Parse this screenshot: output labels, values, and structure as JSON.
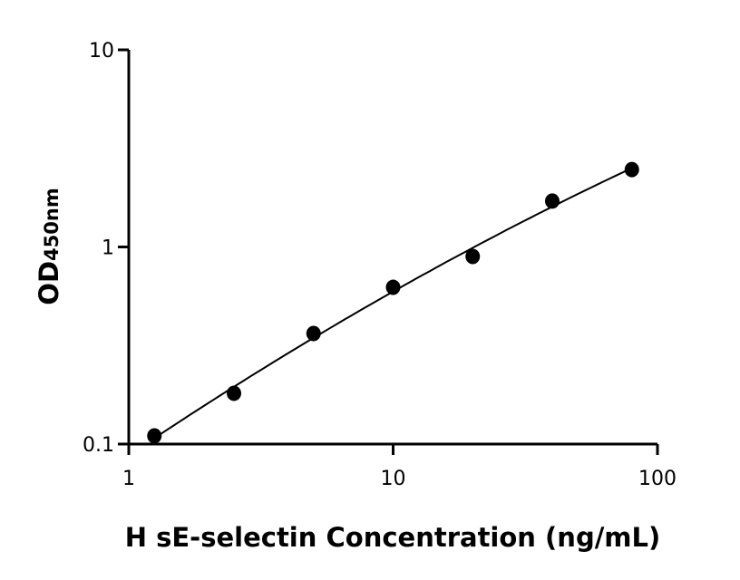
{
  "chart_data": {
    "type": "scatter",
    "title": "",
    "xlabel": "H sE-selectin Concentration (ng/mL)",
    "ylabel_main": "OD",
    "ylabel_sub": "450nm",
    "x_scale": "log",
    "y_scale": "log",
    "xlim": [
      1,
      100
    ],
    "ylim": [
      0.1,
      10
    ],
    "x_ticks": [
      1,
      10,
      100
    ],
    "x_tick_labels": [
      "1",
      "10",
      "100"
    ],
    "y_ticks": [
      0.1,
      1,
      10
    ],
    "y_tick_labels": [
      "0.1",
      "1",
      "10"
    ],
    "grid": false,
    "fit_curve": true,
    "marker_color": "#000000",
    "points": [
      {
        "x": 1.25,
        "y": 0.11
      },
      {
        "x": 2.5,
        "y": 0.181
      },
      {
        "x": 5,
        "y": 0.364
      },
      {
        "x": 10,
        "y": 0.624
      },
      {
        "x": 20,
        "y": 0.895
      },
      {
        "x": 40,
        "y": 1.71
      },
      {
        "x": 80,
        "y": 2.47
      }
    ]
  }
}
